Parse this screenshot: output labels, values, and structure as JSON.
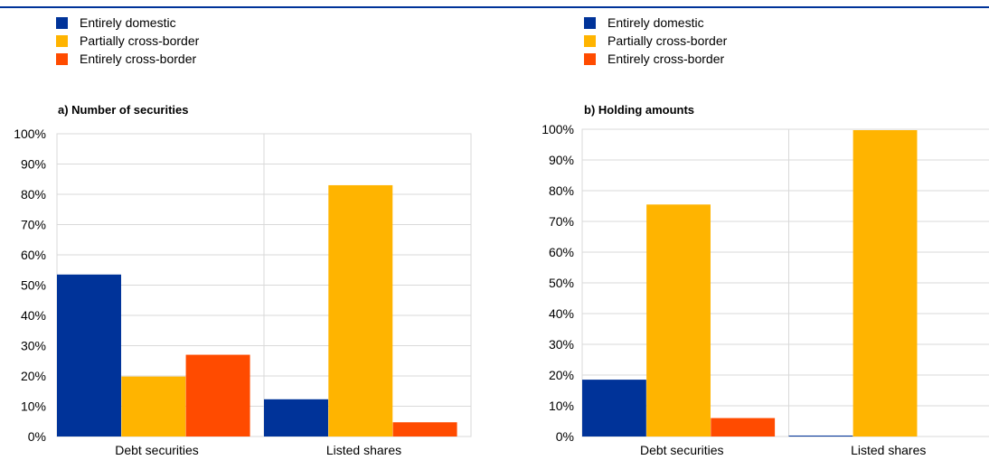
{
  "colors": {
    "domestic": "#003399",
    "partial": "#FFB400",
    "cross": "#FF4B00",
    "grid": "#d9d9d9"
  },
  "chart_data": [
    {
      "type": "bar",
      "title": "a) Number of securities",
      "categories": [
        "Debt securities",
        "Listed shares"
      ],
      "series": [
        {
          "name": "Entirely domestic",
          "values": [
            53.5,
            12.3
          ]
        },
        {
          "name": "Partially cross-border",
          "values": [
            19.8,
            83.0
          ]
        },
        {
          "name": "Entirely cross-border",
          "values": [
            27.0,
            4.7
          ]
        }
      ],
      "ylim": [
        0,
        100
      ],
      "yticks": [
        "0%",
        "10%",
        "20%",
        "30%",
        "40%",
        "50%",
        "60%",
        "70%",
        "80%",
        "90%",
        "100%"
      ],
      "legend": "top-left"
    },
    {
      "type": "bar",
      "title": "b) Holding amounts",
      "categories": [
        "Debt securities",
        "Listed shares"
      ],
      "series": [
        {
          "name": "Entirely domestic",
          "values": [
            18.5,
            0.3
          ]
        },
        {
          "name": "Partially cross-border",
          "values": [
            75.5,
            99.7
          ]
        },
        {
          "name": "Entirely cross-border",
          "values": [
            6.0,
            0.0
          ]
        }
      ],
      "ylim": [
        0,
        100
      ],
      "yticks": [
        "0%",
        "10%",
        "20%",
        "30%",
        "40%",
        "50%",
        "60%",
        "70%",
        "80%",
        "90%",
        "100%"
      ],
      "legend": "top-left"
    }
  ]
}
